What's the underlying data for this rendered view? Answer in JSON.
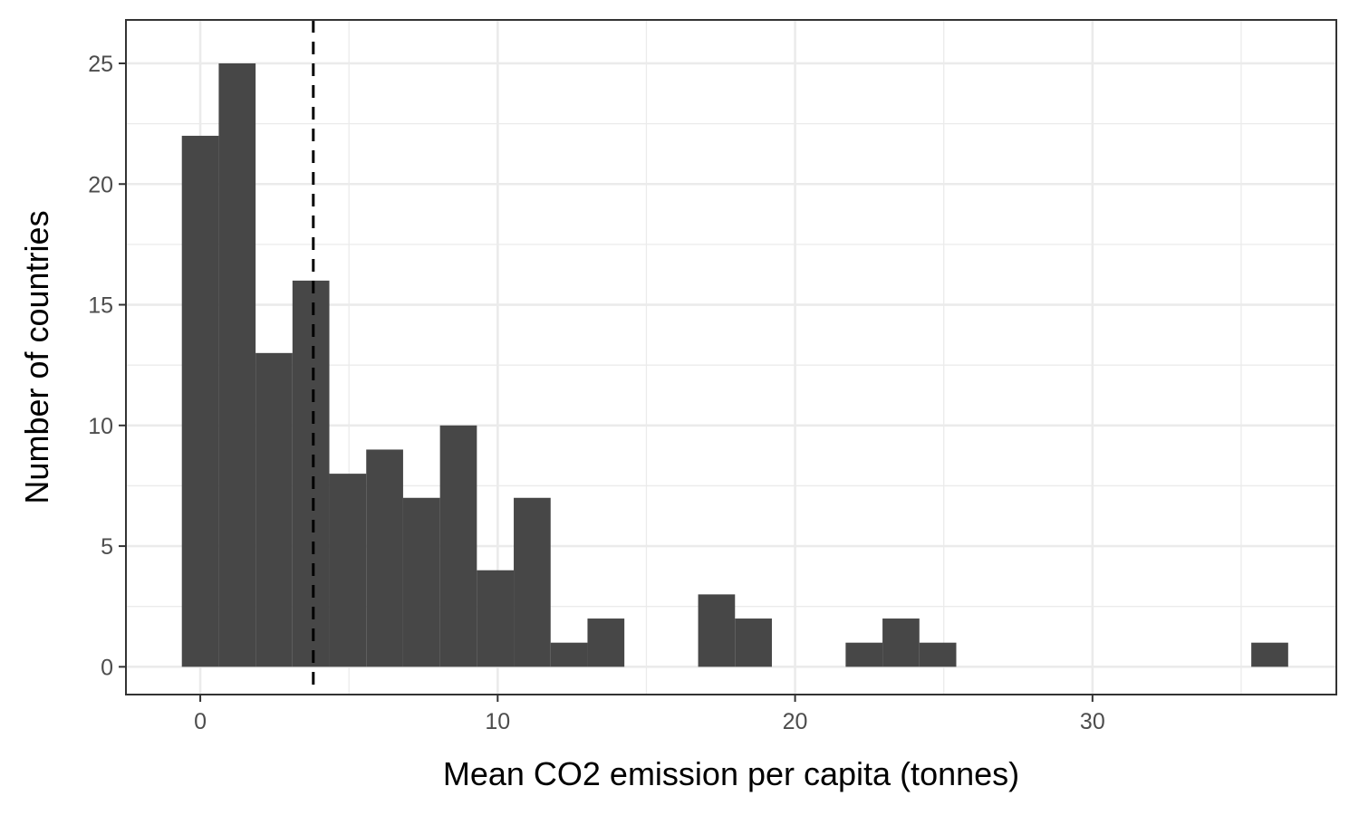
{
  "chart_data": {
    "type": "bar",
    "title": "",
    "xlabel": "Mean CO2 emission per capita (tonnes)",
    "ylabel": "Number of countries",
    "xlim": [
      -2.5,
      38.2
    ],
    "ylim": [
      -1.15,
      26.8
    ],
    "x_ticks": [
      0,
      10,
      20,
      30
    ],
    "x_tick_labels": [
      "0",
      "10",
      "20",
      "30"
    ],
    "x_minor": [
      -5,
      5,
      15,
      25,
      35
    ],
    "y_ticks": [
      0,
      5,
      10,
      15,
      20,
      25
    ],
    "y_tick_labels": [
      "0",
      "5",
      "10",
      "15",
      "20",
      "25"
    ],
    "y_minor": [
      2.5,
      7.5,
      12.5,
      17.5,
      22.5
    ],
    "grid": true,
    "bin_width": 1.24,
    "bins": [
      {
        "x_start": -0.62,
        "x_end": 0.62,
        "count": 22
      },
      {
        "x_start": 0.62,
        "x_end": 1.86,
        "count": 25
      },
      {
        "x_start": 1.86,
        "x_end": 3.1,
        "count": 13
      },
      {
        "x_start": 3.1,
        "x_end": 4.34,
        "count": 16
      },
      {
        "x_start": 4.34,
        "x_end": 5.58,
        "count": 8
      },
      {
        "x_start": 5.58,
        "x_end": 6.82,
        "count": 9
      },
      {
        "x_start": 6.82,
        "x_end": 8.06,
        "count": 7
      },
      {
        "x_start": 8.06,
        "x_end": 9.3,
        "count": 10
      },
      {
        "x_start": 9.3,
        "x_end": 10.54,
        "count": 4
      },
      {
        "x_start": 10.54,
        "x_end": 11.78,
        "count": 7
      },
      {
        "x_start": 11.78,
        "x_end": 13.02,
        "count": 1
      },
      {
        "x_start": 13.02,
        "x_end": 14.26,
        "count": 2
      },
      {
        "x_start": 14.26,
        "x_end": 15.5,
        "count": 0
      },
      {
        "x_start": 15.5,
        "x_end": 16.74,
        "count": 0
      },
      {
        "x_start": 16.74,
        "x_end": 17.98,
        "count": 3
      },
      {
        "x_start": 17.98,
        "x_end": 19.22,
        "count": 2
      },
      {
        "x_start": 19.22,
        "x_end": 20.46,
        "count": 0
      },
      {
        "x_start": 20.46,
        "x_end": 21.7,
        "count": 0
      },
      {
        "x_start": 21.7,
        "x_end": 22.94,
        "count": 1
      },
      {
        "x_start": 22.94,
        "x_end": 24.18,
        "count": 2
      },
      {
        "x_start": 24.18,
        "x_end": 25.42,
        "count": 1
      },
      {
        "x_start": 25.42,
        "x_end": 26.66,
        "count": 0
      },
      {
        "x_start": 26.66,
        "x_end": 27.9,
        "count": 0
      },
      {
        "x_start": 27.9,
        "x_end": 29.14,
        "count": 0
      },
      {
        "x_start": 29.14,
        "x_end": 30.38,
        "count": 0
      },
      {
        "x_start": 30.38,
        "x_end": 31.62,
        "count": 0
      },
      {
        "x_start": 31.62,
        "x_end": 32.86,
        "count": 0
      },
      {
        "x_start": 32.86,
        "x_end": 34.1,
        "count": 0
      },
      {
        "x_start": 34.1,
        "x_end": 35.34,
        "count": 0
      },
      {
        "x_start": 35.34,
        "x_end": 36.58,
        "count": 1
      }
    ],
    "reference_line": {
      "x": 3.8,
      "style": "dashed",
      "color": "#000000"
    },
    "bar_color": "#474747",
    "panel_border_color": "#333333",
    "grid_color": "#ebebeb"
  }
}
